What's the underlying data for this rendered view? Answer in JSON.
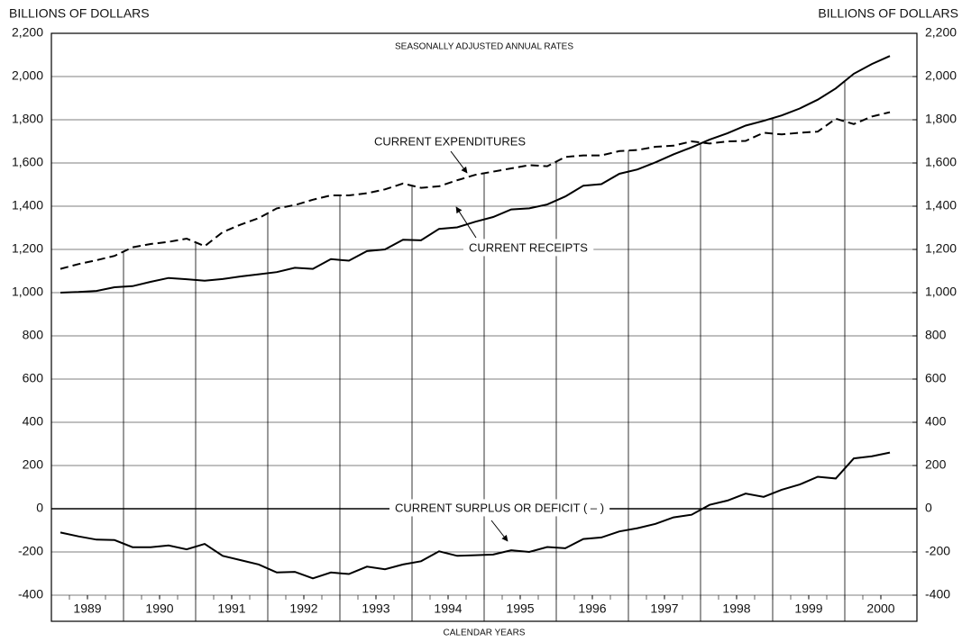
{
  "chart_data": {
    "type": "line",
    "subtitle": "SEASONALLY ADJUSTED ANNUAL RATES",
    "y_label": "BILLIONS OF DOLLARS",
    "y2_label": "BILLIONS OF DOLLARS",
    "x_label": "CALENDAR YEARS",
    "x": [
      1989.125,
      1989.375,
      1989.625,
      1989.875,
      1990.125,
      1990.375,
      1990.625,
      1990.875,
      1991.125,
      1991.375,
      1991.625,
      1991.875,
      1992.125,
      1992.375,
      1992.625,
      1992.875,
      1993.125,
      1993.375,
      1993.625,
      1993.875,
      1994.125,
      1994.375,
      1994.625,
      1994.875,
      1995.125,
      1995.375,
      1995.625,
      1995.875,
      1996.125,
      1996.375,
      1996.625,
      1996.875,
      1997.125,
      1997.375,
      1997.625,
      1997.875,
      1998.125,
      1998.375,
      1998.625,
      1998.875,
      1999.125,
      1999.375,
      1999.625,
      1999.875,
      2000.125,
      2000.375,
      2000.625
    ],
    "xlim": [
      1989,
      2001
    ],
    "xticks": [
      {
        "value": 1989.5,
        "label": "1989"
      },
      {
        "value": 1990.5,
        "label": "1990"
      },
      {
        "value": 1991.5,
        "label": "1991"
      },
      {
        "value": 1992.5,
        "label": "1992"
      },
      {
        "value": 1993.5,
        "label": "1993"
      },
      {
        "value": 1994.5,
        "label": "1994"
      },
      {
        "value": 1995.5,
        "label": "1995"
      },
      {
        "value": 1996.5,
        "label": "1996"
      },
      {
        "value": 1997.5,
        "label": "1997"
      },
      {
        "value": 1998.5,
        "label": "1998"
      },
      {
        "value": 1999.5,
        "label": "1999"
      },
      {
        "value": 2000.5,
        "label": "2000"
      }
    ],
    "ylim": [
      -400,
      2200
    ],
    "yticks": [
      -400,
      -200,
      0,
      200,
      400,
      600,
      800,
      {
        "value": 1000,
        "label": "1,000"
      },
      {
        "value": 1200,
        "label": "1,200"
      },
      {
        "value": 1400,
        "label": "1,400"
      },
      {
        "value": 1600,
        "label": "1,600"
      },
      {
        "value": 1800,
        "label": "1,800"
      },
      {
        "value": 2000,
        "label": "2,000"
      },
      {
        "value": 2200,
        "label": "2,200"
      }
    ],
    "y2lim": [
      -400,
      2200
    ],
    "y2ticks": [
      -400,
      -200,
      0,
      200,
      400,
      600,
      800,
      {
        "value": 1000,
        "label": "1,000"
      },
      {
        "value": 1200,
        "label": "1,200"
      },
      {
        "value": 1400,
        "label": "1,400"
      },
      {
        "value": 1600,
        "label": "1,600"
      },
      {
        "value": 1800,
        "label": "1,800"
      },
      {
        "value": 2000,
        "label": "2,000"
      },
      {
        "value": 2200,
        "label": "2,200"
      }
    ],
    "grid": true,
    "series": [
      {
        "name": "CURRENT EXPENDITURES",
        "color": "#000000",
        "dash": true,
        "values": [
          1110,
          1132,
          1150,
          1170,
          1210,
          1225,
          1235,
          1250,
          1215,
          1280,
          1315,
          1345,
          1390,
          1405,
          1430,
          1450,
          1450,
          1460,
          1478,
          1505,
          1485,
          1492,
          1520,
          1545,
          1560,
          1575,
          1590,
          1585,
          1628,
          1635,
          1635,
          1655,
          1660,
          1675,
          1680,
          1700,
          1690,
          1700,
          1702,
          1740,
          1732,
          1740,
          1745,
          1805,
          1780,
          1815,
          1835
        ]
      },
      {
        "name": "CURRENT RECEIPTS",
        "color": "#000000",
        "dash": false,
        "values": [
          1000,
          1003,
          1008,
          1025,
          1030,
          1050,
          1068,
          1062,
          1055,
          1063,
          1075,
          1085,
          1095,
          1115,
          1110,
          1155,
          1148,
          1192,
          1200,
          1245,
          1242,
          1295,
          1302,
          1328,
          1350,
          1385,
          1390,
          1408,
          1445,
          1495,
          1502,
          1550,
          1570,
          1603,
          1640,
          1672,
          1708,
          1738,
          1773,
          1795,
          1820,
          1852,
          1893,
          1945,
          2013,
          2058,
          2095
        ]
      },
      {
        "name": "CURRENT SURPLUS OR DEFICIT ( – )",
        "color": "#000000",
        "dash": false,
        "values": [
          -110,
          -128,
          -143,
          -145,
          -178,
          -178,
          -170,
          -188,
          -163,
          -218,
          -238,
          -258,
          -295,
          -292,
          -322,
          -295,
          -302,
          -268,
          -280,
          -258,
          -243,
          -197,
          -218,
          -215,
          -212,
          -192,
          -200,
          -177,
          -183,
          -140,
          -133,
          -105,
          -90,
          -70,
          -40,
          -28,
          18,
          38,
          70,
          55,
          88,
          112,
          148,
          140,
          233,
          243,
          260
        ]
      }
    ]
  }
}
